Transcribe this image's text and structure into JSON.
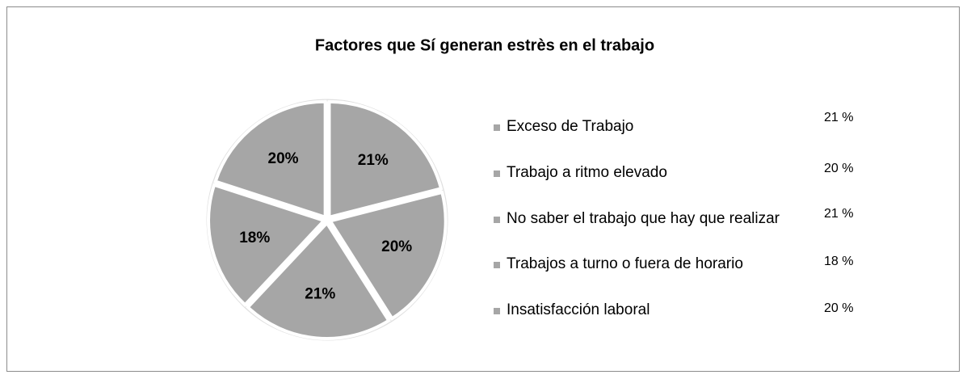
{
  "chart_data": {
    "type": "pie",
    "title": "Factores  que Sí generan estrès en el trabajo",
    "categories": [
      "Exceso de Trabajo",
      "Trabajo a ritmo elevado",
      "No saber el trabajo que hay que realizar",
      "Trabajos a turno o fuera de horario",
      "Insatisfacción laboral"
    ],
    "values": [
      21,
      20,
      21,
      18,
      20
    ],
    "value_labels": [
      "21%",
      "20%",
      "21%",
      "18%",
      "20%"
    ],
    "legend_value_labels": [
      "21 %",
      "20 %",
      "21 %",
      "18 %",
      "20 %"
    ],
    "color": "#a6a6a6",
    "legend": "right"
  }
}
